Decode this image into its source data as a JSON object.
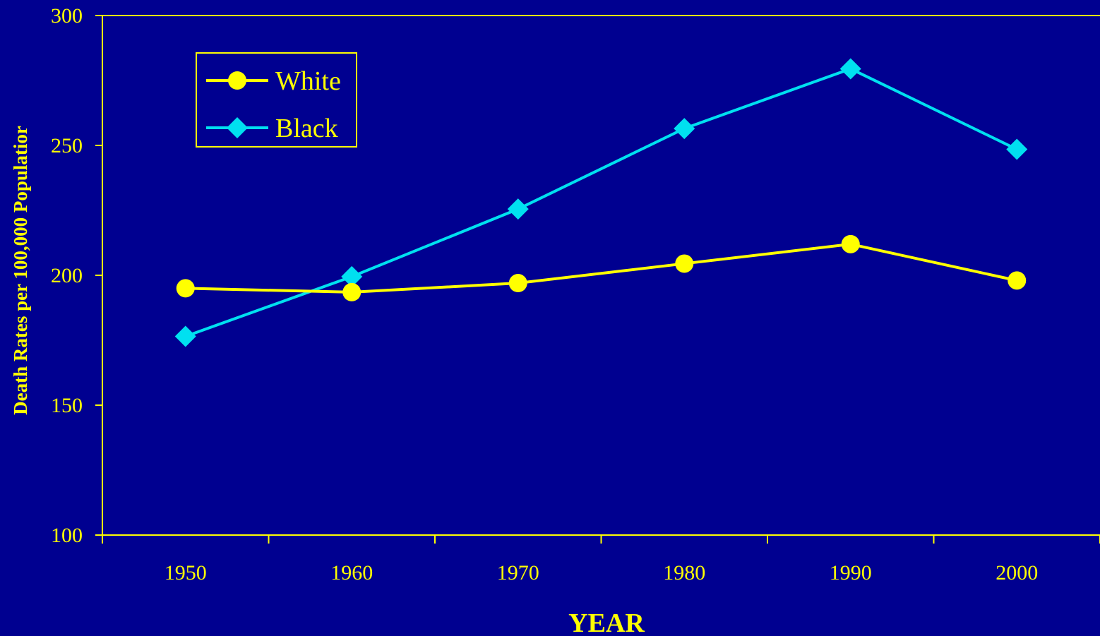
{
  "colors": {
    "background": "#000090",
    "axis": "#ffff00",
    "text": "#ffff00",
    "series_white": "#ffff00",
    "series_black": "#00e0f0"
  },
  "chart_data": {
    "type": "line",
    "title": "",
    "xlabel": "YEAR",
    "ylabel": "Death Rates per 100,000 Populatior",
    "x": [
      1950,
      1960,
      1970,
      1980,
      1990,
      2000
    ],
    "categories": [
      "1950",
      "1960",
      "1970",
      "1980",
      "1990",
      "2000"
    ],
    "ylim": [
      100,
      300
    ],
    "yticks": [
      "100",
      "150",
      "200",
      "250",
      "300"
    ],
    "grid": false,
    "legend_position": "top-left",
    "series": [
      {
        "name": "White",
        "marker": "circle",
        "color": "#ffff00",
        "values": [
          195,
          193.5,
          197,
          204.5,
          212,
          198
        ]
      },
      {
        "name": "Black",
        "marker": "diamond",
        "color": "#00e0f0",
        "values": [
          176.5,
          199.5,
          225.5,
          256.5,
          279.5,
          248.5
        ]
      }
    ]
  }
}
